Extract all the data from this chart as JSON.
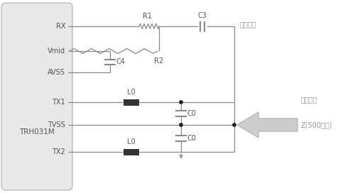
{
  "bg_color": "#ffffff",
  "box_facecolor": "#e8e8e8",
  "box_edgecolor": "#bbbbbb",
  "line_color": "#888888",
  "text_color": "#555555",
  "component_color": "#333333",
  "dot_color": "#222222",
  "arrow_color": "#cccccc",
  "arrow_edge_color": "#aaaaaa",
  "title": "TRH031M",
  "annotation_receive": "接收电路",
  "annotation_send": "发送电路",
  "annotation_z": "Z(500欧姆)"
}
